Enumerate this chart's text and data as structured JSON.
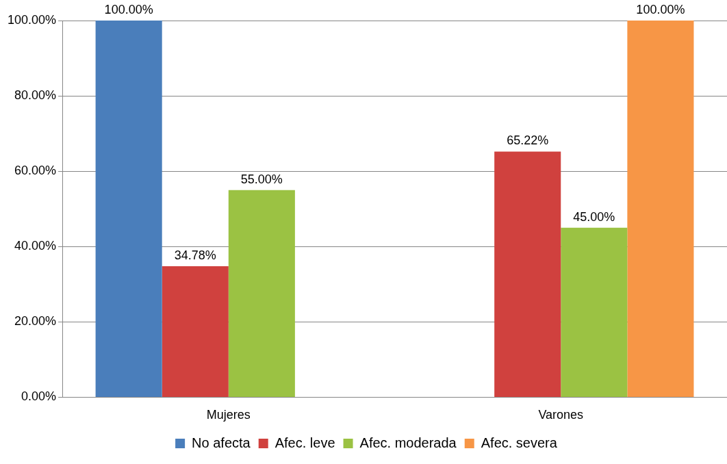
{
  "chart_data": {
    "type": "bar",
    "categories": [
      "Mujeres",
      "Varones"
    ],
    "series": [
      {
        "name": "No afecta",
        "color": "#4a7ebb",
        "values": [
          100,
          null
        ],
        "value_labels": [
          "100.00%",
          null
        ]
      },
      {
        "name": "Afec. leve",
        "color": "#d0413e",
        "values": [
          34.78,
          65.22
        ],
        "value_labels": [
          "34.78%",
          "65.22%"
        ]
      },
      {
        "name": "Afec. moderada",
        "color": "#9bc243",
        "values": [
          55,
          45
        ],
        "value_labels": [
          "55.00%",
          "45.00%"
        ]
      },
      {
        "name": "Afec. severa",
        "color": "#f79646",
        "values": [
          null,
          100
        ],
        "value_labels": [
          null,
          "100.00%"
        ]
      }
    ],
    "ylim": [
      0,
      100
    ],
    "yticks": [
      {
        "value": 0,
        "label": "0.00%"
      },
      {
        "value": 20,
        "label": "20.00%"
      },
      {
        "value": 40,
        "label": "40.00%"
      },
      {
        "value": 60,
        "label": "60.00%"
      },
      {
        "value": 80,
        "label": "80.00%"
      },
      {
        "value": 100,
        "label": "100.00%"
      }
    ],
    "grid": "y",
    "legend": "bottom"
  }
}
